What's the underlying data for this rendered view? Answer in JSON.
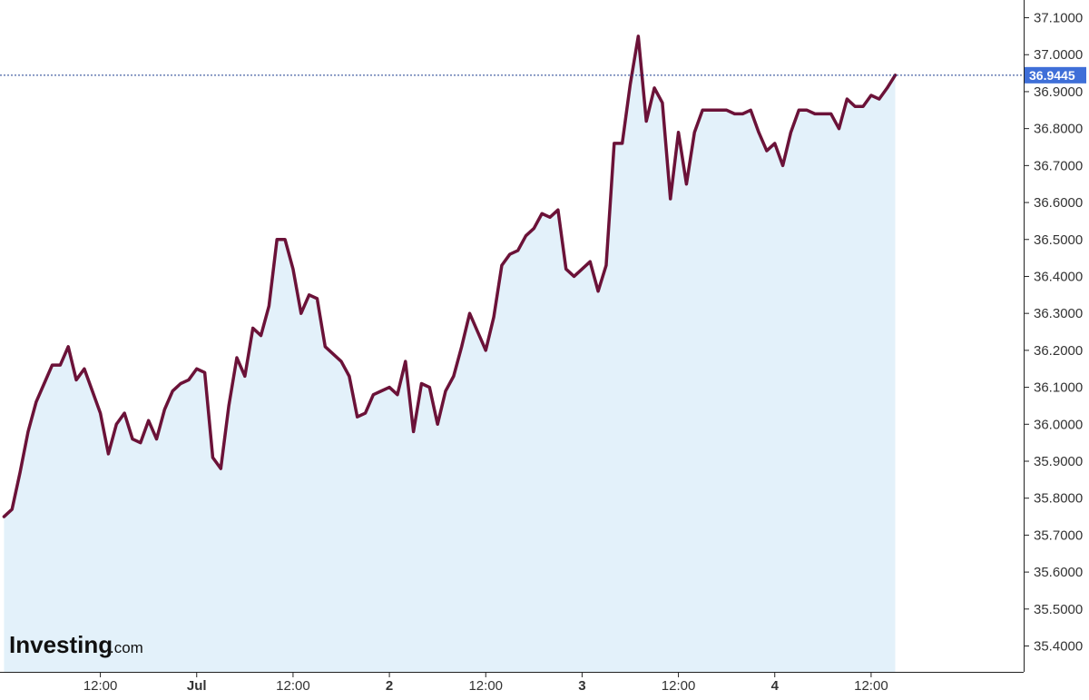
{
  "logo": {
    "main": "Investing",
    "sub": ".com"
  },
  "colors": {
    "line": "#6b1238",
    "area": "#e3f1fa",
    "axis": "#222222",
    "guide": "#1f3f8f",
    "badge": "#3f6fd8"
  },
  "chart_data": {
    "type": "area",
    "title": "",
    "xlabel": "",
    "ylabel": "",
    "ylim": [
      35.33,
      37.148
    ],
    "grid": false,
    "y_ticks": [
      "35.4000",
      "35.5000",
      "35.6000",
      "35.7000",
      "35.8000",
      "35.9000",
      "36.0000",
      "36.1000",
      "36.2000",
      "36.3000",
      "36.4000",
      "36.5000",
      "36.6000",
      "36.7000",
      "36.8000",
      "36.9000",
      "37.0000",
      "37.1000"
    ],
    "x_ticks": [
      {
        "label": "12:00",
        "position": 12,
        "bold": false
      },
      {
        "label": "Jul",
        "position": 24,
        "bold": true
      },
      {
        "label": "12:00",
        "position": 36,
        "bold": false
      },
      {
        "label": "2",
        "position": 48,
        "bold": true
      },
      {
        "label": "12:00",
        "position": 60,
        "bold": false
      },
      {
        "label": "3",
        "position": 72,
        "bold": true
      },
      {
        "label": "12:00",
        "position": 84,
        "bold": false
      },
      {
        "label": "4",
        "position": 96,
        "bold": true
      },
      {
        "label": "12:00",
        "position": 108,
        "bold": false
      }
    ],
    "x_range": [
      -0.5,
      127
    ],
    "last_value_label": "36.9445",
    "series": [
      {
        "values": [
          35.75,
          35.77,
          35.87,
          35.98,
          36.06,
          36.11,
          36.16,
          36.16,
          36.21,
          36.12,
          36.15,
          36.09,
          36.03,
          35.92,
          36.0,
          36.03,
          35.96,
          35.95,
          36.01,
          35.96,
          36.04,
          36.09,
          36.11,
          36.12,
          36.15,
          36.14,
          35.91,
          35.88,
          36.05,
          36.18,
          36.13,
          36.26,
          36.24,
          36.32,
          36.5,
          36.5,
          36.42,
          36.3,
          36.35,
          36.34,
          36.21,
          36.19,
          36.17,
          36.13,
          36.02,
          36.03,
          36.08,
          36.09,
          36.1,
          36.08,
          36.17,
          35.98,
          36.11,
          36.1,
          36.0,
          36.09,
          36.13,
          36.21,
          36.3,
          36.25,
          36.2,
          36.29,
          36.43,
          36.46,
          36.47,
          36.51,
          36.53,
          36.57,
          36.56,
          36.58,
          36.42,
          36.4,
          36.42,
          36.44,
          36.36,
          36.43,
          36.76,
          36.76,
          36.92,
          37.05,
          36.82,
          36.91,
          36.87,
          36.61,
          36.79,
          36.65,
          36.79,
          36.85,
          36.85,
          36.85,
          36.85,
          36.84,
          36.84,
          36.85,
          36.79,
          36.74,
          36.76,
          36.7,
          36.79,
          36.85,
          36.85,
          36.84,
          36.84,
          36.84,
          36.8,
          36.88,
          36.86,
          36.86,
          36.89,
          36.88,
          36.91,
          36.9445
        ]
      }
    ]
  }
}
